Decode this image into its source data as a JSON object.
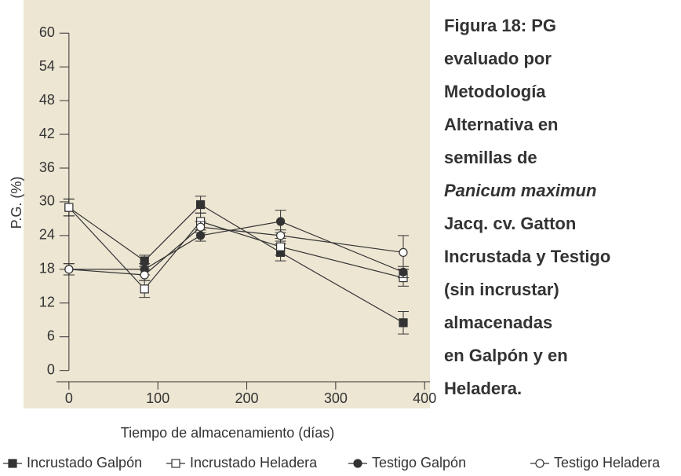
{
  "chart_data": {
    "type": "line",
    "title_lines": [
      "Figura 18: PG",
      "evaluado por",
      "Metodología",
      "Alternativa en",
      "semillas de",
      "Panicum maximun",
      "Jacq. cv. Gatton",
      "Incrustada y  Testigo",
      "(sin incrustar)",
      "almacenadas",
      "en Galpón y en",
      "Heladera."
    ],
    "italic_line": 5,
    "x_label": "Tiempo de almacenamiento (días)",
    "y_label": "P.G. (%)",
    "x": [
      0,
      85,
      148,
      238,
      376
    ],
    "xlim": [
      -14,
      406
    ],
    "xticks": [
      0,
      100,
      200,
      300,
      400
    ],
    "ylim": [
      -2,
      64.5
    ],
    "yticks": [
      0,
      6,
      12,
      18,
      24,
      30,
      36,
      42,
      48,
      54,
      60
    ],
    "background": "#ede6d3",
    "series": [
      {
        "name": "Incrustado Galpón",
        "color": "#333333",
        "marker": "square",
        "filled": true,
        "values": [
          29,
          19.5,
          29.5,
          21,
          8.5
        ],
        "errors": [
          1.5,
          1,
          1.5,
          1.5,
          2
        ]
      },
      {
        "name": "Incrustado Heladera",
        "color": "#333333",
        "marker": "square",
        "filled": false,
        "values": [
          29,
          14.5,
          26.5,
          22,
          16.5
        ],
        "errors": [
          1.5,
          1.5,
          1.5,
          1.5,
          1.5
        ]
      },
      {
        "name": "Testigo Galpón",
        "color": "#333333",
        "marker": "circle",
        "filled": true,
        "values": [
          18,
          18,
          24,
          26.5,
          17.5
        ],
        "errors": [
          1,
          1,
          1,
          2,
          1
        ]
      },
      {
        "name": "Testigo Heladera",
        "color": "#333333",
        "marker": "circle",
        "filled": false,
        "values": [
          18,
          17,
          25.5,
          24,
          21
        ],
        "errors": [
          1,
          1,
          1,
          1,
          3
        ]
      }
    ]
  }
}
